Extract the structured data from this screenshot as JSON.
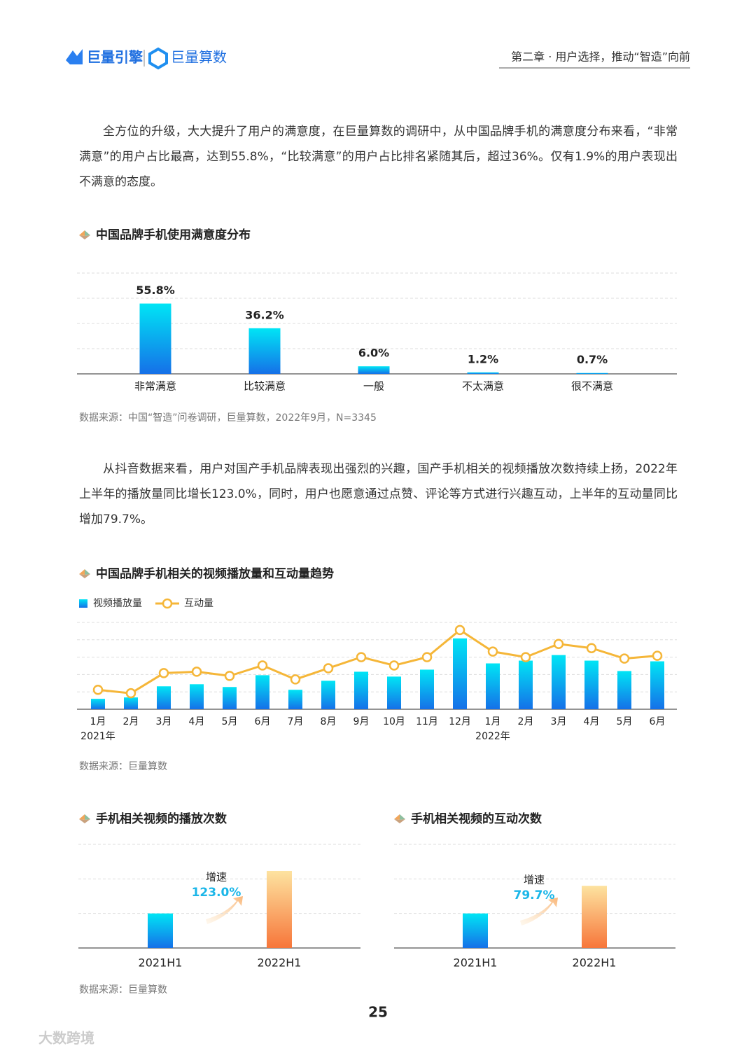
{
  "header": {
    "logo_left": "巨量引擎",
    "logo_right": "巨量算数",
    "chapter": "第二章 · 用户选择，推动“智造”向前"
  },
  "paragraphs": [
    "全方位的升级，大大提升了用户的满意度，在巨量算数的调研中，从中国品牌手机的满意度分布来看，“非常满意”的用户占比最高，达到55.8%，“比较满意”的用户占比排名紧随其后，超过36%。仅有1.9%的用户表现出不满意的态度。",
    "从抖音数据来看，用户对国产手机品牌表现出强烈的兴趣，国产手机相关的视频播放次数持续上扬，2022年上半年的播放量同比增长123.0%，同时，用户也愿意通过点赞、评论等方式进行兴趣互动，上半年的互动量同比增加79.7%。"
  ],
  "chart_data": [
    {
      "type": "bar",
      "title": "中国品牌手机使用满意度分布",
      "categories": [
        "非常满意",
        "比较满意",
        "一般",
        "不太满意",
        "很不满意"
      ],
      "values": [
        55.8,
        36.2,
        6.0,
        1.2,
        0.7
      ],
      "value_labels": [
        "55.8%",
        "36.2%",
        "6.0%",
        "1.2%",
        "0.7%"
      ],
      "colors": [
        "#00e5f5",
        "#1570e8"
      ],
      "ylim": [
        0,
        80
      ],
      "grid": true,
      "source": "数据来源：中国“智造”问卷调研，巨量算数，2022年9月，N=3345"
    },
    {
      "type": "bar-line",
      "title": "中国品牌手机相关的视频播放量和互动量趋势",
      "categories": [
        "1月",
        "2月",
        "3月",
        "4月",
        "5月",
        "6月",
        "7月",
        "8月",
        "9月",
        "10月",
        "11月",
        "12月",
        "1月",
        "2月",
        "3月",
        "4月",
        "5月",
        "6月"
      ],
      "year_labels": [
        "2021年",
        null,
        null,
        null,
        null,
        null,
        null,
        null,
        null,
        null,
        null,
        null,
        "2022年",
        null,
        null,
        null,
        null,
        null
      ],
      "series": [
        {
          "name": "视频播放量",
          "type": "bar",
          "colors": [
            "#00e5f5",
            "#1570e8"
          ],
          "values": [
            15,
            17,
            33,
            36,
            32,
            49,
            28,
            41,
            54,
            47,
            57,
            102,
            66,
            70,
            78,
            70,
            55,
            69
          ]
        },
        {
          "name": "互动量",
          "type": "line",
          "color": "#f5b638",
          "values": [
            28,
            23,
            52,
            54,
            48,
            63,
            43,
            59,
            75,
            63,
            75,
            114,
            83,
            75,
            94,
            88,
            73,
            77
          ]
        }
      ],
      "ylim": [
        0,
        125
      ],
      "grid": true,
      "source": "数据来源：巨量算数"
    },
    {
      "type": "bar",
      "title": "手机相关视频的播放次数",
      "categories": [
        "2021H1",
        "2022H1"
      ],
      "values": [
        50,
        111.5
      ],
      "bar_colors": [
        [
          "#00e5f5",
          "#1570e8"
        ],
        [
          "#fde3a0",
          "#f7763a"
        ]
      ],
      "annotation": {
        "label": "增速",
        "value": "123.0%"
      },
      "ylim": [
        0,
        150
      ],
      "grid": true,
      "source": "数据来源：巨量算数"
    },
    {
      "type": "bar",
      "title": "手机相关视频的互动次数",
      "categories": [
        "2021H1",
        "2022H1"
      ],
      "values": [
        50,
        90
      ],
      "bar_colors": [
        [
          "#00e5f5",
          "#1570e8"
        ],
        [
          "#fde3a0",
          "#f7763a"
        ]
      ],
      "annotation": {
        "label": "增速",
        "value": "79.7%"
      },
      "ylim": [
        0,
        150
      ],
      "grid": true
    }
  ],
  "page_number": "25",
  "watermark": "大数跨境"
}
